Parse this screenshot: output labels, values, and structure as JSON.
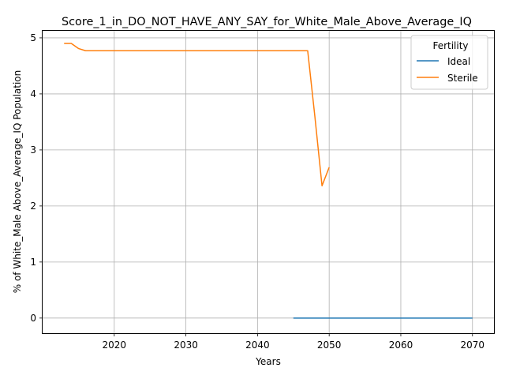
{
  "chart_data": {
    "type": "line",
    "title": "Score_1_in_DO_NOT_HAVE_ANY_SAY_for_White_Male_Above_Average_IQ",
    "xlabel": "Years",
    "ylabel": "% of White_Male Above_Average_IQ Population",
    "xlim": [
      2010,
      2073
    ],
    "ylim": [
      -0.27,
      5.14
    ],
    "xticks": [
      2020,
      2030,
      2040,
      2050,
      2060,
      2070
    ],
    "yticks": [
      0,
      1,
      2,
      3,
      4,
      5
    ],
    "grid": true,
    "legend": {
      "title": "Fertility",
      "position": "top-right"
    },
    "series": [
      {
        "name": "Ideal",
        "color": "#1f77b4",
        "x": [
          2045,
          2050,
          2055,
          2060,
          2065,
          2070
        ],
        "y": [
          0,
          0,
          0,
          0,
          0,
          0
        ]
      },
      {
        "name": "Sterile",
        "color": "#ff7f0e",
        "x": [
          2013,
          2014,
          2015,
          2016,
          2017,
          2020,
          2025,
          2030,
          2035,
          2040,
          2045,
          2047,
          2048,
          2049,
          2050
        ],
        "y": [
          4.9,
          4.9,
          4.81,
          4.77,
          4.77,
          4.77,
          4.77,
          4.77,
          4.77,
          4.77,
          4.77,
          4.77,
          3.6,
          2.36,
          2.69
        ]
      }
    ]
  }
}
